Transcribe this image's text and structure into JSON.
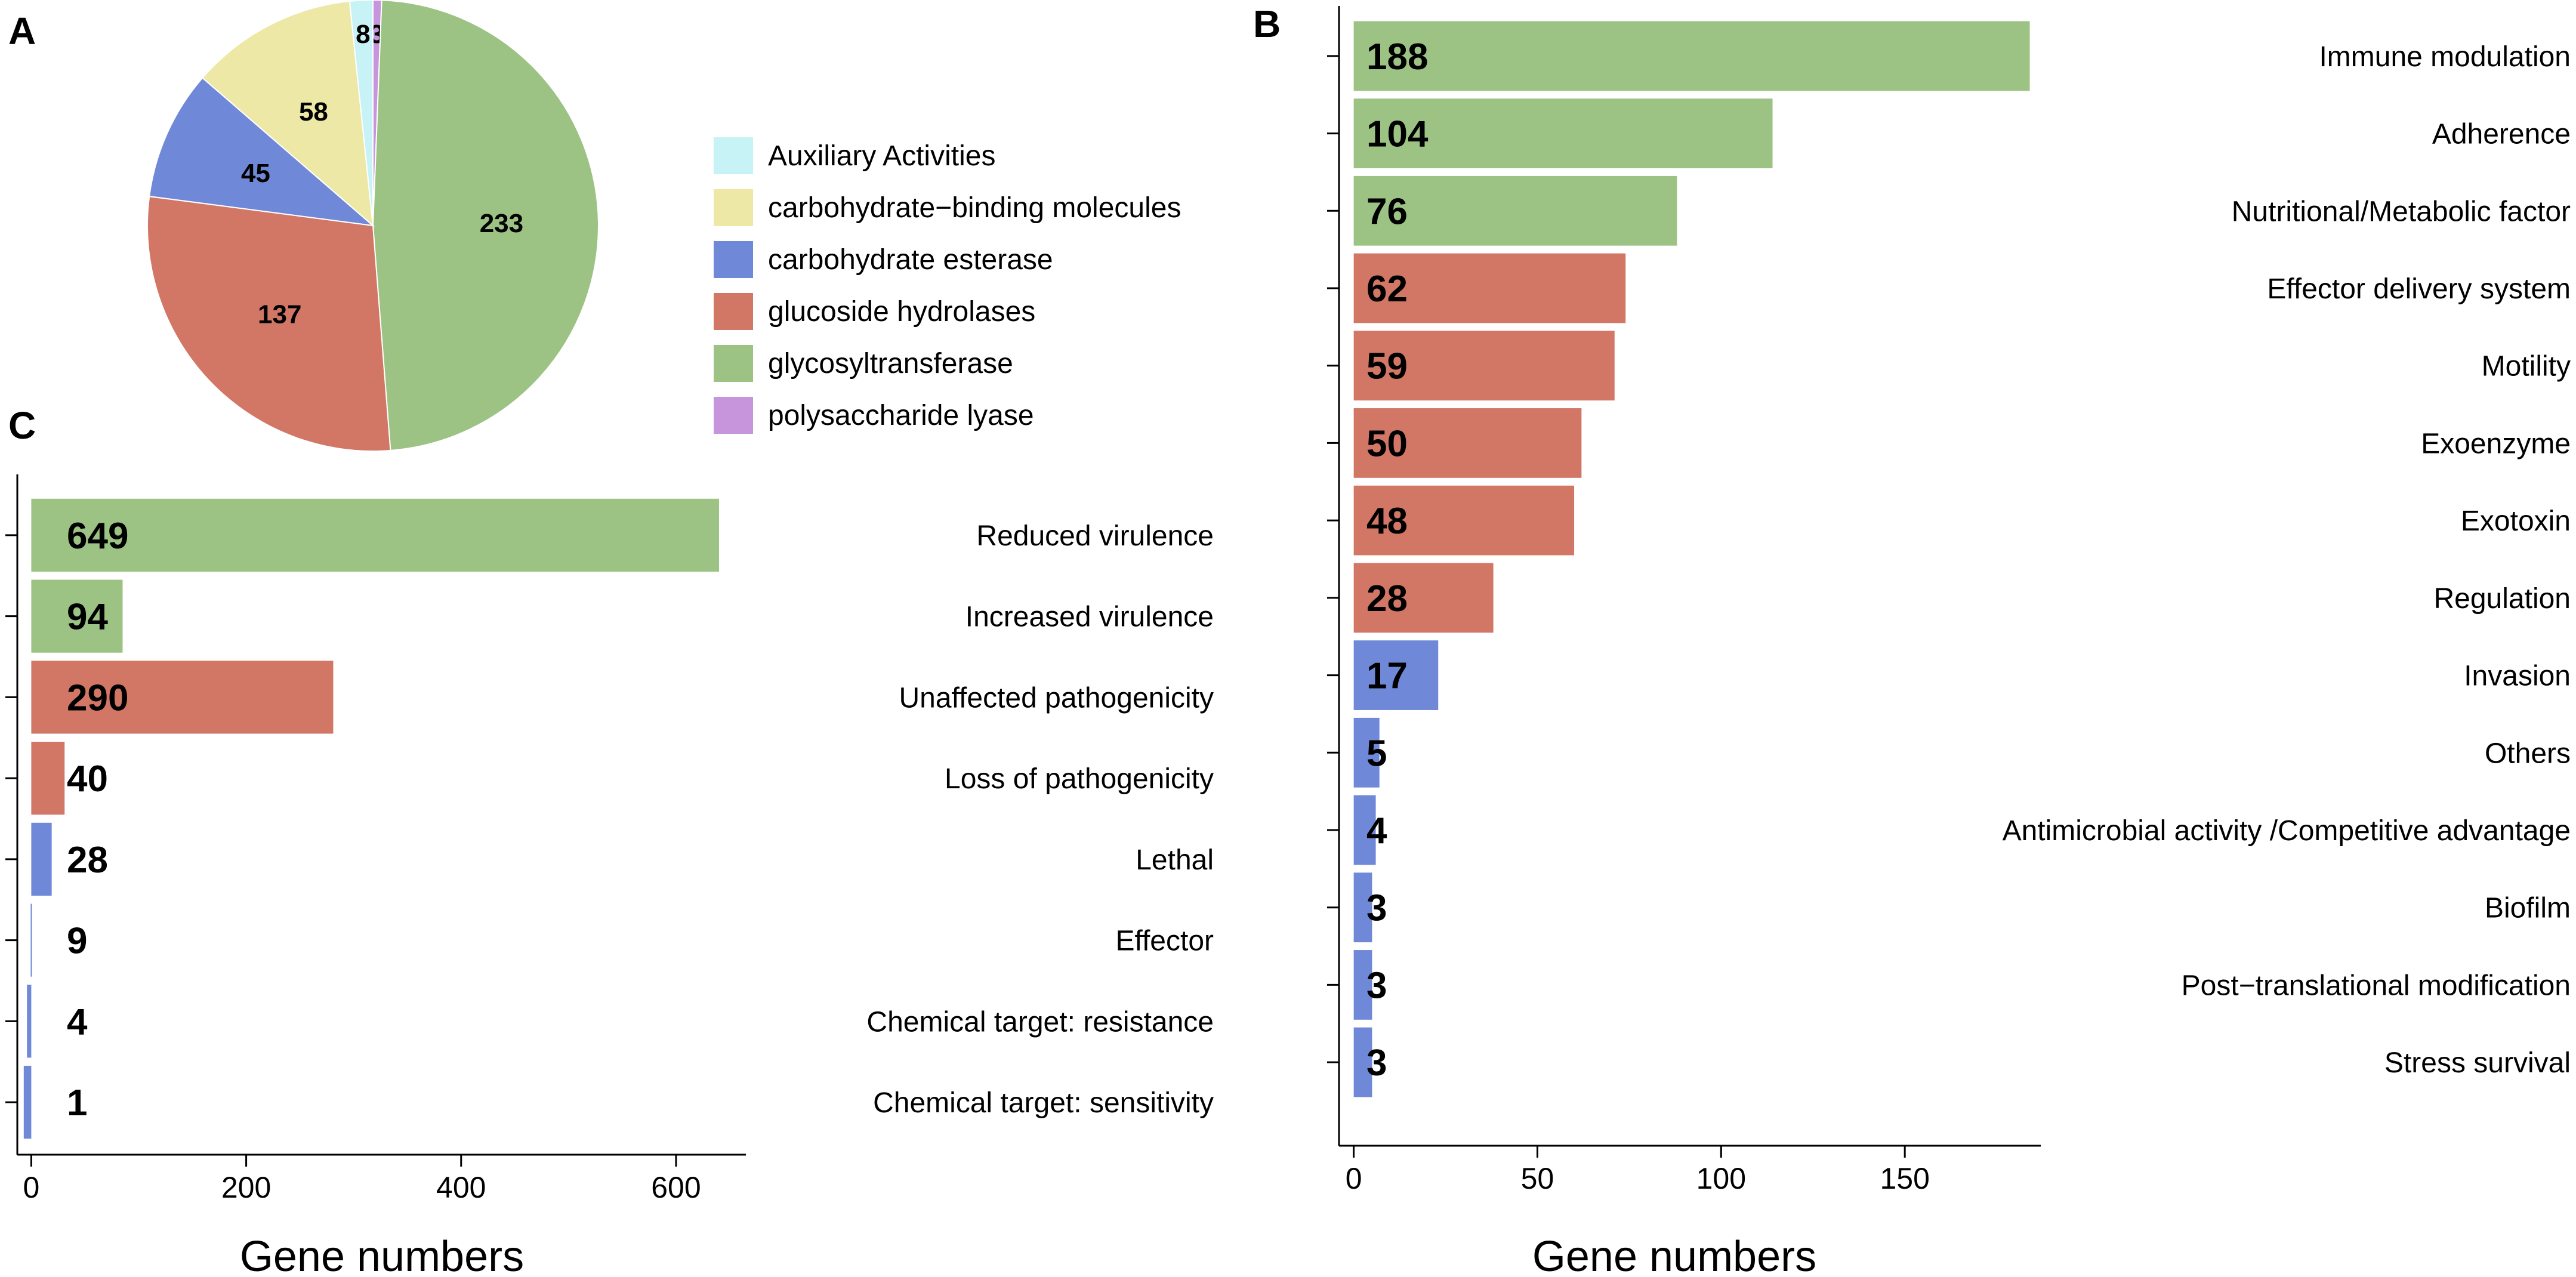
{
  "panels": {
    "a": "A",
    "b": "B",
    "c": "C"
  },
  "chart_data": [
    {
      "id": "A",
      "type": "pie",
      "title": "",
      "categories": [
        "Auxiliary Activities",
        "carbohydrate−binding molecules",
        "carbohydrate esterase",
        "glucoside hydrolases",
        "glycosyltransferase",
        "polysaccharide lyase"
      ],
      "values": [
        8,
        58,
        45,
        137,
        233,
        3
      ],
      "colors": [
        "#c7f3f7",
        "#ede8a6",
        "#7088d8",
        "#d27666",
        "#9cc384",
        "#c795dc"
      ],
      "slice_order": [
        "polysaccharide lyase",
        "glycosyltransferase",
        "glucoside hydrolases",
        "carbohydrate esterase",
        "carbohydrate−binding molecules",
        "Auxiliary Activities"
      ],
      "legend_position": "right"
    },
    {
      "id": "B",
      "type": "bar",
      "orientation": "horizontal",
      "categories": [
        "Immune modulation",
        "Adherence",
        "Nutritional/Metabolic factor",
        "Effector delivery system",
        "Motility",
        "Exoenzyme",
        "Exotoxin",
        "Regulation",
        "Invasion",
        "Others",
        "Antimicrobial activity /Competitive advantage",
        "Biofilm",
        "Post−translational modification",
        "Stress survival"
      ],
      "values": [
        188,
        104,
        76,
        62,
        59,
        50,
        48,
        28,
        17,
        5,
        4,
        3,
        3,
        3
      ],
      "bar_lengths": [
        184,
        114,
        88,
        74,
        71,
        62,
        60,
        38,
        23,
        7,
        6,
        5,
        5,
        5
      ],
      "colors": [
        "#9cc384",
        "#9cc384",
        "#9cc384",
        "#d27666",
        "#d27666",
        "#d27666",
        "#d27666",
        "#d27666",
        "#7088d8",
        "#7088d8",
        "#7088d8",
        "#7088d8",
        "#7088d8",
        "#7088d8"
      ],
      "xlim": [
        -4,
        187
      ],
      "xticks": [
        0,
        50,
        100,
        150
      ],
      "xlabel": "Gene numbers",
      "ylabel": ""
    },
    {
      "id": "C",
      "type": "bar",
      "orientation": "horizontal",
      "categories": [
        "Reduced virulence",
        "Increased virulence",
        "Unaffected pathogenicity",
        "Loss of pathogenicity",
        "Lethal",
        "Effector",
        "Chemical target: resistance",
        "Chemical target: sensitivity"
      ],
      "values": [
        649,
        94,
        290,
        40,
        28,
        9,
        4,
        1
      ],
      "bar_lengths": [
        640,
        85,
        281,
        31,
        19,
        0,
        -4,
        -7
      ],
      "colors": [
        "#9cc384",
        "#9cc384",
        "#d27666",
        "#d27666",
        "#7088d8",
        "#7088d8",
        "#7088d8",
        "#7088d8"
      ],
      "xlim": [
        -13,
        665
      ],
      "xticks": [
        0,
        200,
        400,
        600
      ],
      "xlabel": "Gene numbers",
      "ylabel": ""
    }
  ]
}
